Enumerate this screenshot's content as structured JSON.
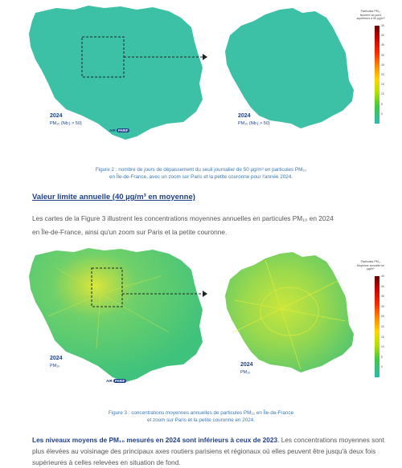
{
  "figure2": {
    "map_left": {
      "year": "2024",
      "subtitle": "PM₁₀ (Nb j > 50)"
    },
    "map_right": {
      "year": "2024",
      "subtitle": "PM₁₀ (Nb j > 50)"
    },
    "legend": {
      "title_line1": "Particules PM₁₀",
      "title_line2": "Nombre de jours supérieurs à 50 µg/m³",
      "ticks": [
        "45",
        "40",
        "35",
        "30",
        "25",
        "20",
        "15",
        "10",
        "5",
        "0"
      ]
    },
    "logo": {
      "text": "AIR",
      "badge": "PARIF"
    },
    "caption_line1": "Figure 2 : nombre de jours de dépassement du seuil journalier de 50 µg/m³ en particules PM₁₀",
    "caption_line2": "en Île-de-France, avec un zoom sur Paris et la petite couronne pour l'année 2024."
  },
  "section_heading": "Valeur limite annuelle (40 µg/m³ en moyenne)",
  "paragraph1_line1": "Les cartes de la Figure 3 illustrent les concentrations moyennes annuelles en particules PM₁₀ en 2024",
  "paragraph1_line2": "en Île-de-France, ainsi qu'un zoom sur Paris et la petite couronne.",
  "figure3": {
    "map_left": {
      "year": "2024",
      "subtitle": "PM₁₀"
    },
    "map_right": {
      "year": "2024",
      "subtitle": "PM₁₀"
    },
    "legend": {
      "title_line1": "Particules PM₁₀",
      "title_line2": "Moyenne annuelle en µg/m³",
      "ticks": [
        "45",
        "40",
        "35",
        "30",
        "25",
        "20",
        "15",
        "10",
        "5",
        "0"
      ]
    },
    "logo": {
      "text": "AIR",
      "badge": "PARIF"
    },
    "caption_line1": "Figure 3 : concentrations moyennes annuelles de particules PM₁₀ en Île-de-France",
    "caption_line2": "et zoom sur Paris et la petite couronne en 2024."
  },
  "final_bold": "Les niveaux moyens de PM₁₀ mesurés en 2024 sont inférieurs à ceux de 2023",
  "final_rest": ". Les concentrations moyennes sont plus élevées au voisinage des principaux axes routiers parisiens et régionaux où elles peuvent être jusqu'à deux fois supérieures à celles relevées en situation de fond.",
  "colors": {
    "teal": "#3cc0a6",
    "caption_blue": "#3a78b5",
    "heading_blue": "#1d3f8a",
    "text_gray": "#555555"
  }
}
